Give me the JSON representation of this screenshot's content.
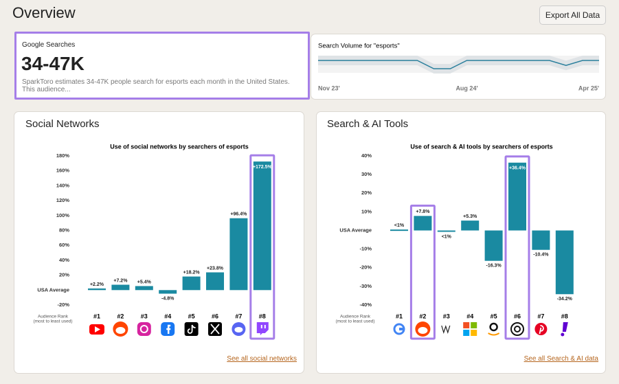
{
  "header": {
    "title": "Overview",
    "button": "Export All Data"
  },
  "summary": {
    "label": "Google Searches",
    "value": "34-47K",
    "description": "SparkToro estimates 34-47K people search for esports each month in the United States. This audience..."
  },
  "cards": [
    {
      "title": "Social Networks",
      "link": "See all social networks"
    },
    {
      "title": "Search & AI Tools",
      "link": "See all Search & AI data"
    }
  ],
  "chart_data": [
    {
      "type": "line",
      "title": "Search Volume for \"esports\"",
      "color": "#2a7f9c",
      "x": [
        0,
        1,
        2,
        3,
        4,
        5,
        6,
        7,
        8,
        9,
        10,
        11,
        12,
        13,
        14,
        15,
        16,
        17
      ],
      "values": [
        52,
        52,
        52,
        52,
        52,
        52,
        52,
        47,
        47,
        52,
        52,
        52,
        52,
        52,
        52,
        49,
        52,
        52
      ],
      "xlim": [
        0,
        17
      ],
      "xticks": [
        {
          "value": 0,
          "label": "Nov 23'"
        },
        {
          "value": 9,
          "label": "Aug 24'"
        },
        {
          "value": 17,
          "label": "Apr 25'"
        }
      ]
    },
    {
      "type": "bar",
      "title": "Use of social networks by searchers of esports",
      "categories": [
        "#1",
        "#2",
        "#3",
        "#4",
        "#5",
        "#6",
        "#7",
        "#8"
      ],
      "values": [
        2.2,
        7.2,
        5.4,
        -4.8,
        18.2,
        23.8,
        96.4,
        172.5
      ],
      "value_labels": [
        "+2.2%",
        "+7.2%",
        "+5.4%",
        "-4.8%",
        "+18.2%",
        "+23.8%",
        "+96.4%",
        "+172.5%"
      ],
      "color": "#1a8aa1",
      "ylim": [
        -20,
        180
      ],
      "yticks": [
        {
          "value": 180,
          "label": "180%"
        },
        {
          "value": 160,
          "label": "160%"
        },
        {
          "value": 140,
          "label": "140%"
        },
        {
          "value": 120,
          "label": "120%"
        },
        {
          "value": 100,
          "label": "100%"
        },
        {
          "value": 80,
          "label": "80%"
        },
        {
          "value": 60,
          "label": "60%"
        },
        {
          "value": 40,
          "label": "40%"
        },
        {
          "value": 20,
          "label": "20%"
        },
        {
          "value": 0,
          "label": "USA Average"
        },
        {
          "value": -20,
          "label": "-20%"
        }
      ],
      "xlabel": "Audience Rank",
      "xlabel_note": "(most to least used)",
      "highlight": [
        7
      ],
      "highlight_color": "#a57ee8"
    },
    {
      "type": "bar",
      "title": "Use of search & AI tools by searchers of esports",
      "categories": [
        "#1",
        "#2",
        "#3",
        "#4",
        "#5",
        "#6",
        "#7",
        "#8"
      ],
      "values": [
        0.5,
        7.8,
        -0.5,
        5.3,
        -16.3,
        36.4,
        -10.4,
        -34.2
      ],
      "value_labels": [
        "<1%",
        "+7.8%",
        "<1%",
        "+5.3%",
        "-16.3%",
        "+36.4%",
        "-10.4%",
        "-34.2%"
      ],
      "color": "#1a8aa1",
      "ylim": [
        -40,
        40
      ],
      "yticks": [
        {
          "value": 40,
          "label": "40%"
        },
        {
          "value": 30,
          "label": "30%"
        },
        {
          "value": 20,
          "label": "20%"
        },
        {
          "value": 10,
          "label": "10%"
        },
        {
          "value": 0,
          "label": "USA Average"
        },
        {
          "value": -10,
          "label": "-10%"
        },
        {
          "value": -20,
          "label": "-20%"
        },
        {
          "value": -30,
          "label": "-30%"
        },
        {
          "value": -40,
          "label": "-40%"
        }
      ],
      "xlabel": "Audience Rank",
      "xlabel_note": "(most to least used)",
      "highlight": [
        1,
        5
      ],
      "highlight_color": "#a57ee8"
    }
  ]
}
